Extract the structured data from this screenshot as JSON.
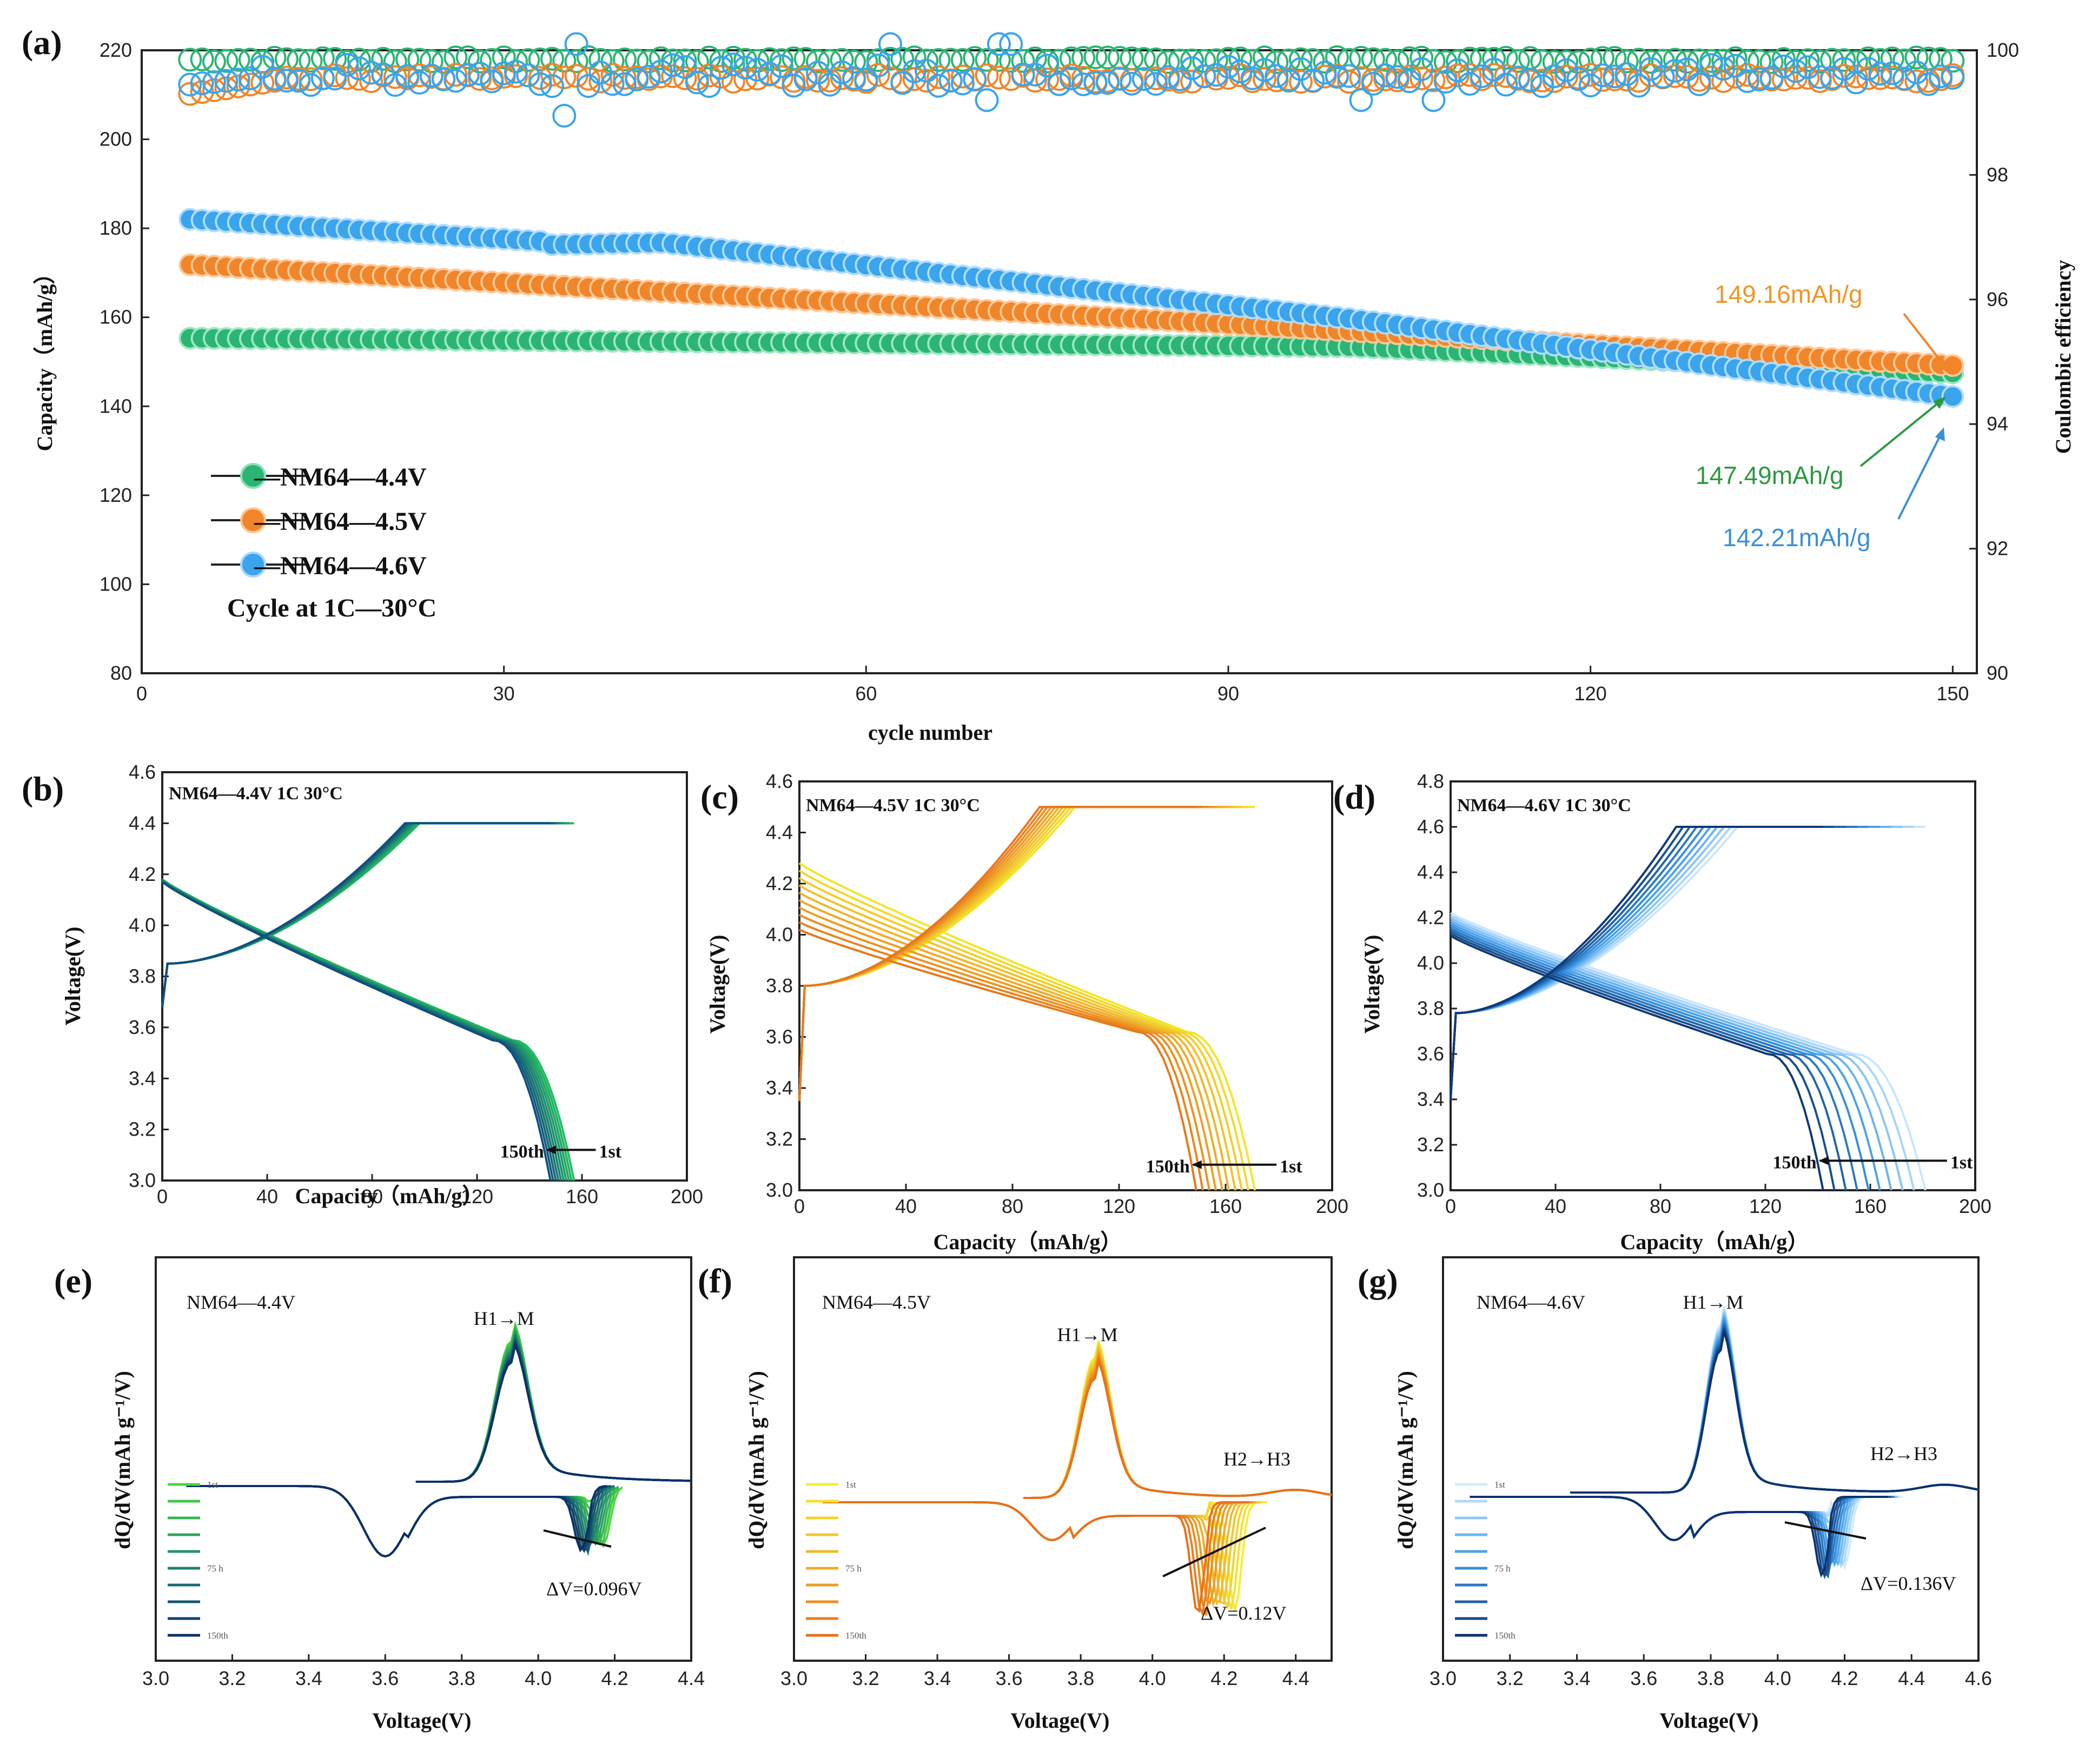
{
  "panel_letters": {
    "a": "(a)",
    "b": "(b)",
    "c": "(c)",
    "d": "(d)",
    "e": "(e)",
    "f": "(f)",
    "g": "(g)"
  },
  "colors": {
    "nm44": "#2bb574",
    "nm45": "#f0852a",
    "nm46": "#3aa4ec"
  },
  "chart_data": [
    {
      "id": "a",
      "type": "scatter",
      "xlabel": "cycle number",
      "ylabel": "Capacity（mAh/g）",
      "y2label": "Coulombic efficiency",
      "xlim": [
        0,
        152
      ],
      "ylim": [
        80,
        220
      ],
      "y2lim": [
        90,
        100
      ],
      "xticks": [
        "0",
        "30",
        "60",
        "90",
        "120",
        "150"
      ],
      "yticks": [
        "80",
        "100",
        "120",
        "140",
        "160",
        "180",
        "200",
        "220"
      ],
      "y2ticks": [
        "90",
        "92",
        "94",
        "96",
        "98",
        "100"
      ],
      "legend": [
        "—NM64—4.4V",
        "—NM64—4.5V",
        "—NM64—4.6V"
      ],
      "condition": "Cycle at 1C—30°C",
      "annotations": {
        "orange": "149.16mAh/g",
        "green": "147.49mAh/g",
        "blue": "142.21mAh/g"
      },
      "series": [
        {
          "name": "NM64—4.4V",
          "capacity_start": 155.3,
          "capacity_end": 147.49,
          "ce": 99.85
        },
        {
          "name": "NM64—4.5V",
          "capacity_start": 171.8,
          "capacity_end": 149.16,
          "ce": 99.55
        },
        {
          "name": "NM64—4.6V",
          "capacity_start": 182.0,
          "capacity_end": 142.21,
          "ce": 99.65
        }
      ]
    },
    {
      "id": "b",
      "type": "line",
      "title": "NM64—4.4V  1C  30°C",
      "xlabel": "Capacity（mAh/g）",
      "ylabel": "Voltage(V)",
      "xlim": [
        0,
        200
      ],
      "ylim": [
        3.0,
        4.6
      ],
      "xticks": [
        "0",
        "40",
        "80",
        "120",
        "160",
        "200"
      ],
      "yticks": [
        "3.0",
        "3.2",
        "3.4",
        "3.6",
        "3.8",
        "4.0",
        "4.2",
        "4.4",
        "4.6"
      ],
      "cutoff": 4.4,
      "first_discharge_capacity": 157,
      "last_discharge_capacity": 148,
      "labels": {
        "first": "1st",
        "last": "150th"
      }
    },
    {
      "id": "c",
      "type": "line",
      "title": "NM64—4.5V  1C  30°C",
      "xlabel": "Capacity（mAh/g）",
      "ylabel": "Voltage(V)",
      "xlim": [
        0,
        200
      ],
      "ylim": [
        3.0,
        4.6
      ],
      "xticks": [
        "0",
        "40",
        "80",
        "120",
        "160",
        "200"
      ],
      "yticks": [
        "3.0",
        "3.2",
        "3.4",
        "3.6",
        "3.8",
        "4.0",
        "4.2",
        "4.4",
        "4.6"
      ],
      "cutoff": 4.5,
      "first_discharge_capacity": 171,
      "last_discharge_capacity": 149,
      "labels": {
        "first": "1st",
        "last": "150th"
      }
    },
    {
      "id": "d",
      "type": "line",
      "title": "NM64—4.6V  1C  30°C",
      "xlabel": "Capacity（mAh/g）",
      "ylabel": "Voltage(V)",
      "xlim": [
        0,
        200
      ],
      "ylim": [
        3.0,
        4.8
      ],
      "xticks": [
        "0",
        "40",
        "80",
        "120",
        "160",
        "200"
      ],
      "yticks": [
        "3.0",
        "3.2",
        "3.4",
        "3.6",
        "3.8",
        "4.0",
        "4.2",
        "4.4",
        "4.6",
        "4.8"
      ],
      "cutoff": 4.6,
      "first_discharge_capacity": 181,
      "last_discharge_capacity": 142,
      "labels": {
        "first": "1st",
        "last": "150th"
      }
    },
    {
      "id": "e",
      "type": "line",
      "title": "NM64—4.4V",
      "xlabel": "Voltage(V)",
      "ylabel": "dQ/dV(mAh g⁻¹/V)",
      "xlim": [
        3.0,
        4.4
      ],
      "xticks": [
        "3.0",
        "3.2",
        "3.4",
        "3.6",
        "3.8",
        "4.0",
        "4.2",
        "4.4"
      ],
      "charge_peak_v": 3.93,
      "discharge_peaks_v": [
        3.6,
        4.13
      ],
      "peak_label": "H1→M",
      "delta_v": "ΔV=0.096V",
      "legend": [
        "1st",
        "",
        "",
        "",
        "",
        "75 h",
        "",
        "",
        "",
        "150th"
      ]
    },
    {
      "id": "f",
      "type": "line",
      "title": "NM64—4.5V",
      "xlabel": "Voltage(V)",
      "ylabel": "dQ/dV(mAh g⁻¹/V)",
      "xlim": [
        3.0,
        4.5
      ],
      "xticks": [
        "3.0",
        "3.2",
        "3.4",
        "3.6",
        "3.8",
        "4.0",
        "4.2",
        "4.4"
      ],
      "charge_peak_v": 3.84,
      "discharge_peaks_v": [
        3.72,
        4.15
      ],
      "peak_label": "H1→M",
      "peak_label_2": "H2→H3",
      "delta_v": "ΔV=0.12V",
      "legend": [
        "1st",
        "",
        "",
        "",
        "",
        "75 h",
        "",
        "",
        "",
        "150th"
      ]
    },
    {
      "id": "g",
      "type": "line",
      "title": "NM64—4.6V",
      "xlabel": "Voltage(V)",
      "ylabel": "dQ/dV(mAh g⁻¹/V)",
      "xlim": [
        3.0,
        4.6
      ],
      "xticks": [
        "3.0",
        "3.2",
        "3.4",
        "3.6",
        "3.8",
        "4.0",
        "4.2",
        "4.4",
        "4.6"
      ],
      "charge_peak_v": 3.83,
      "discharge_peaks_v": [
        3.69,
        4.15
      ],
      "peak_label": "H1→M",
      "peak_label_2": "H2→H3",
      "delta_v": "ΔV=0.136V",
      "legend": [
        "1st",
        "",
        "",
        "",
        "",
        "75 h",
        "",
        "",
        "",
        "150th"
      ]
    }
  ]
}
